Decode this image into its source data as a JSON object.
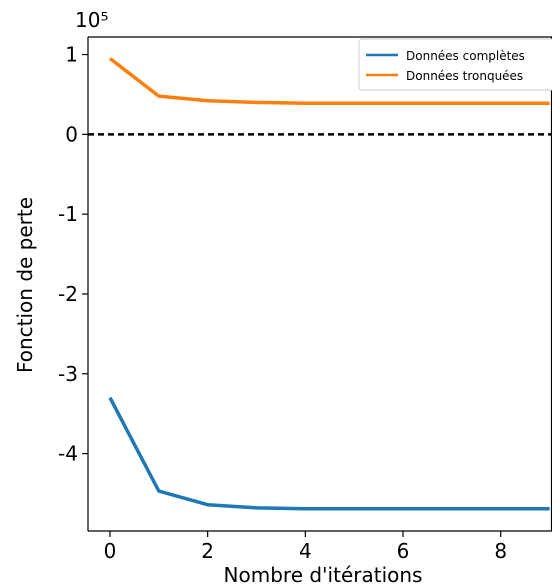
{
  "chart_data": {
    "type": "line",
    "x": [
      0,
      1,
      2,
      3,
      4,
      5,
      6,
      7,
      8,
      9
    ],
    "series": [
      {
        "name": "Données complètes",
        "color": "#1f77b4",
        "values": [
          -3.3,
          -4.47,
          -4.64,
          -4.68,
          -4.69,
          -4.69,
          -4.69,
          -4.69,
          -4.69,
          -4.69
        ]
      },
      {
        "name": "Données tronquées",
        "color": "#ff7f0e",
        "values": [
          0.95,
          0.48,
          0.42,
          0.4,
          0.39,
          0.39,
          0.39,
          0.39,
          0.39,
          0.39
        ]
      }
    ],
    "xlabel": "Nombre d'itérations",
    "ylabel": "Fonction de perte",
    "scale_label": "10⁵",
    "xlim": [
      -0.45,
      9.05
    ],
    "ylim": [
      -4.97,
      1.22
    ],
    "xticks": [
      0,
      2,
      4,
      6,
      8
    ],
    "yticks": [
      1,
      0,
      -1,
      -2,
      -3,
      -4
    ],
    "ytick_labels": [
      "1",
      "0",
      "-1",
      "-2",
      "-3",
      "-4"
    ],
    "reference_line": {
      "y": 0,
      "style": "dashed",
      "color": "#000000"
    },
    "grid": false,
    "legend_position": "top-right"
  }
}
